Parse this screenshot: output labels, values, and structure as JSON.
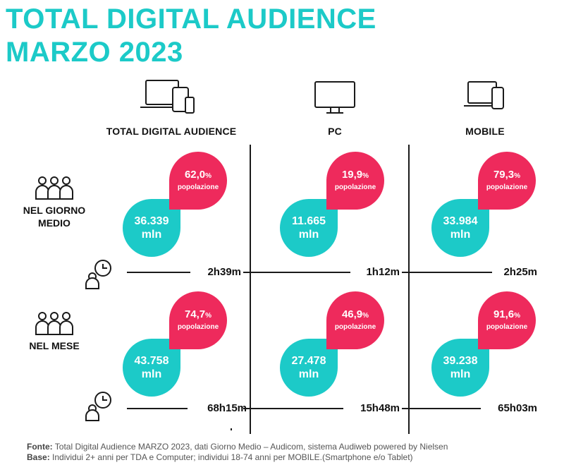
{
  "title": {
    "line1": "TOTAL DIGITAL AUDIENCE",
    "line2": "MARZO 2023"
  },
  "columns": [
    {
      "label": "TOTAL DIGITAL AUDIENCE",
      "icon": "devices-icon"
    },
    {
      "label": "PC",
      "icon": "monitor-icon"
    },
    {
      "label": "MOBILE",
      "icon": "laptop-phone-icon"
    }
  ],
  "rows": [
    {
      "label_line1": "NEL GIORNO",
      "label_line2": "MEDIO",
      "icon": "people-group-icon",
      "time_icon": "user-clock-icon"
    },
    {
      "label_line1": "NEL MESE",
      "label_line2": "",
      "icon": "people-group-icon",
      "time_icon": "user-clock-icon"
    }
  ],
  "cells": [
    [
      {
        "users": "36.339",
        "unit": "mln",
        "pct": "62,0",
        "pct_sign": "%",
        "pop": "popolazione",
        "time": "2h39m"
      },
      {
        "users": "11.665",
        "unit": "mln",
        "pct": "19,9",
        "pct_sign": "%",
        "pop": "popolazione",
        "time": "1h12m"
      },
      {
        "users": "33.984",
        "unit": "mln",
        "pct": "79,3",
        "pct_sign": "%",
        "pop": "popolazione",
        "time": "2h25m"
      }
    ],
    [
      {
        "users": "43.758",
        "unit": "mln",
        "pct": "74,7",
        "pct_sign": "%",
        "pop": "popolazione",
        "time": "68h15m"
      },
      {
        "users": "27.478",
        "unit": "mln",
        "pct": "46,9",
        "pct_sign": "%",
        "pop": "popolazione",
        "time": "15h48m"
      },
      {
        "users": "39.238",
        "unit": "mln",
        "pct": "91,6",
        "pct_sign": "%",
        "pop": "popolazione",
        "time": "65h03m"
      }
    ]
  ],
  "footer": {
    "fonte_label": "Fonte:",
    "fonte_text": " Total Digital Audience MARZO 2023, dati Giorno Medio – Audicom, sistema Audiweb powered by Nielsen",
    "base_label": "Base:",
    "base_text": "  Individui 2+ anni per TDA e Computer; individui 18-74 anni per MOBILE.(Smartphone e/o Tablet)"
  },
  "colors": {
    "teal": "#1ccac8",
    "pink": "#ee2a5c",
    "ink": "#1a1a1a"
  }
}
